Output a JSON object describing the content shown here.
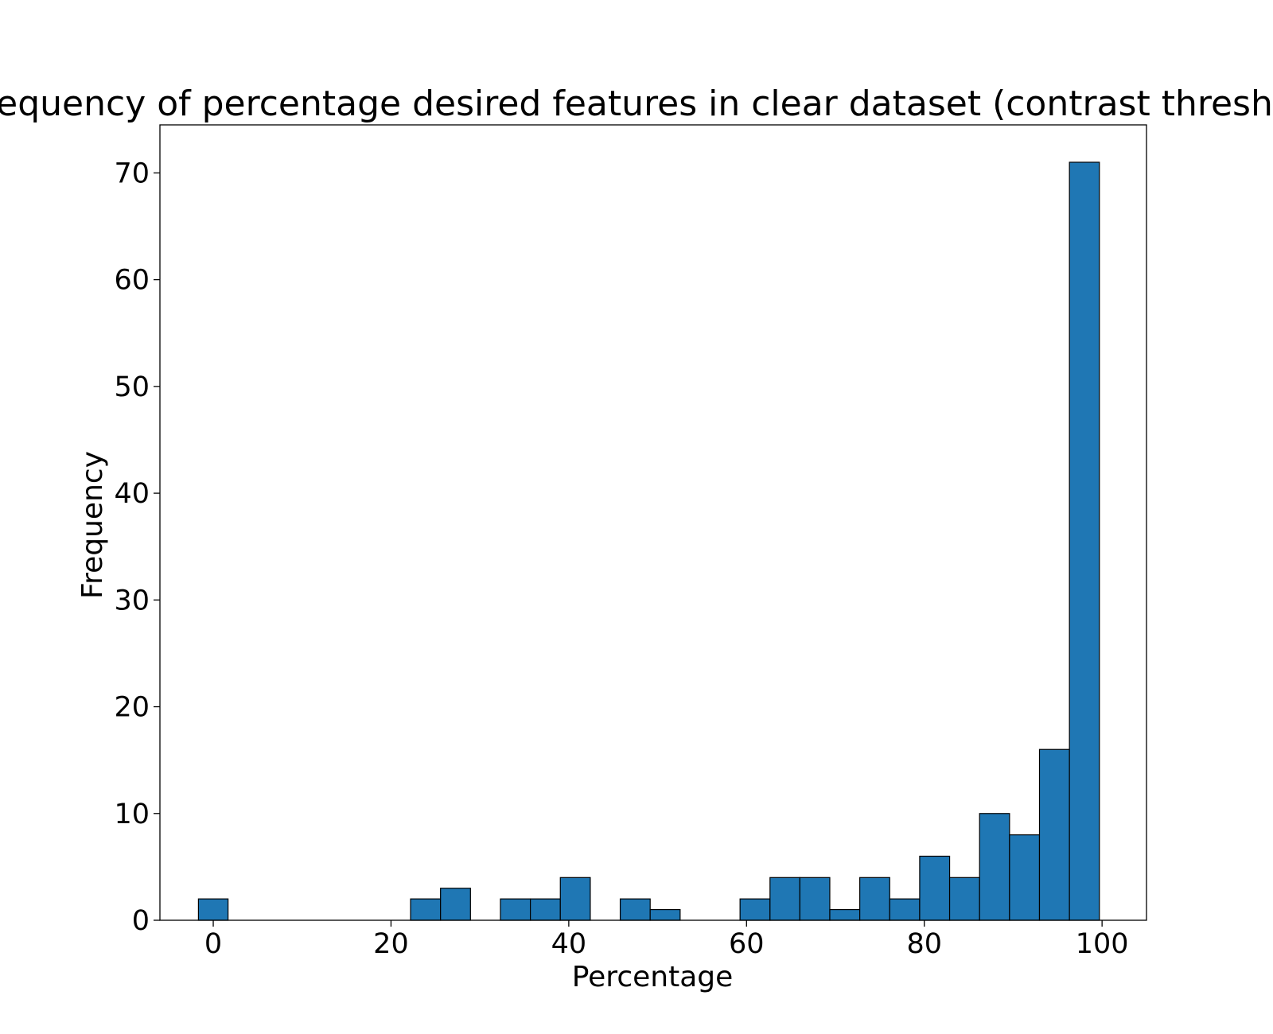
{
  "chart_data": {
    "type": "bar",
    "title": "Frequency of percentage desired features in clear dataset (contrast threshold)",
    "xlabel": "Percentage",
    "ylabel": "Frequency",
    "xlim": [
      -6,
      105
    ],
    "ylim": [
      0,
      74.5
    ],
    "xticks": [
      0,
      20,
      40,
      60,
      80,
      100
    ],
    "yticks": [
      0,
      10,
      20,
      30,
      40,
      50,
      60,
      70
    ],
    "bin_width": 3.367,
    "bins": [
      {
        "x0": -1.667,
        "x1": 1.667,
        "value": 2
      },
      {
        "x0": 22.2,
        "x1": 25.57,
        "value": 2
      },
      {
        "x0": 25.57,
        "x1": 28.94,
        "value": 3
      },
      {
        "x0": 32.31,
        "x1": 35.68,
        "value": 2
      },
      {
        "x0": 35.68,
        "x1": 39.05,
        "value": 2
      },
      {
        "x0": 39.05,
        "x1": 42.42,
        "value": 4
      },
      {
        "x0": 45.79,
        "x1": 49.16,
        "value": 2
      },
      {
        "x0": 49.16,
        "x1": 52.53,
        "value": 1
      },
      {
        "x0": 59.27,
        "x1": 62.64,
        "value": 2
      },
      {
        "x0": 62.64,
        "x1": 66.0,
        "value": 4
      },
      {
        "x0": 66.0,
        "x1": 69.37,
        "value": 4
      },
      {
        "x0": 69.37,
        "x1": 72.74,
        "value": 1
      },
      {
        "x0": 72.74,
        "x1": 76.11,
        "value": 4
      },
      {
        "x0": 76.11,
        "x1": 79.48,
        "value": 2
      },
      {
        "x0": 79.48,
        "x1": 82.85,
        "value": 6
      },
      {
        "x0": 82.85,
        "x1": 86.22,
        "value": 4
      },
      {
        "x0": 86.22,
        "x1": 89.59,
        "value": 10
      },
      {
        "x0": 89.59,
        "x1": 92.96,
        "value": 8
      },
      {
        "x0": 92.96,
        "x1": 96.33,
        "value": 16
      },
      {
        "x0": 96.33,
        "x1": 99.7,
        "value": 71
      }
    ],
    "bar_color": "#1f77b4",
    "edge_color": "#000000",
    "grid": false,
    "legend": "none"
  }
}
